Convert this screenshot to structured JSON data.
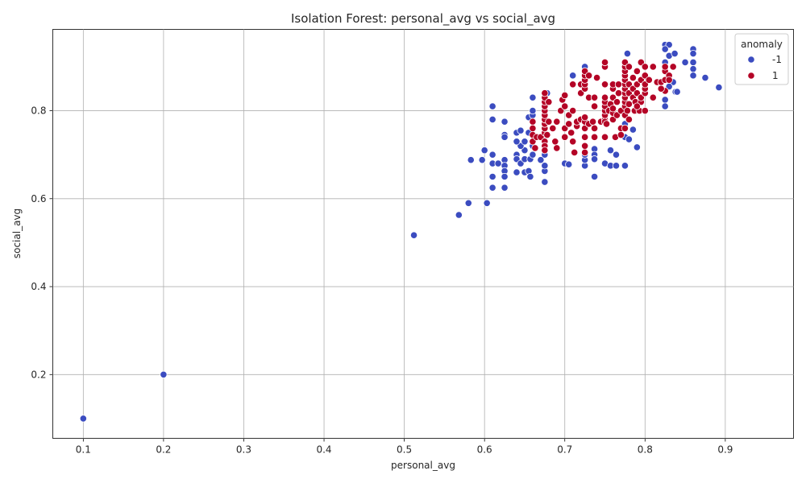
{
  "chart_data": {
    "type": "scatter",
    "title": "Isolation Forest: personal_avg vs social_avg",
    "xlabel": "personal_avg",
    "ylabel": "social_avg",
    "xlim": [
      0.062,
      0.985
    ],
    "ylim": [
      0.055,
      0.985
    ],
    "xticks": [
      "0.1",
      "0.2",
      "0.3",
      "0.4",
      "0.5",
      "0.6",
      "0.7",
      "0.8",
      "0.9"
    ],
    "xtick_values": [
      0.1,
      0.2,
      0.3,
      0.4,
      0.5,
      0.6,
      0.7,
      0.8,
      0.9
    ],
    "yticks": [
      "0.2",
      "0.4",
      "0.6",
      "0.8"
    ],
    "ytick_values": [
      0.2,
      0.4,
      0.6,
      0.8
    ],
    "grid": true,
    "legend": {
      "title": "anomaly",
      "placement": "top-right",
      "entries": [
        {
          "label": "-1",
          "color": "#3b4cc0"
        },
        {
          "label": "1",
          "color": "#b40426"
        }
      ]
    },
    "series": [
      {
        "name": "-1",
        "color": "#3b4cc0",
        "points": [
          [
            0.1,
            0.1
          ],
          [
            0.2,
            0.2
          ],
          [
            0.512,
            0.517
          ],
          [
            0.568,
            0.563
          ],
          [
            0.58,
            0.59
          ],
          [
            0.603,
            0.59
          ],
          [
            0.583,
            0.688
          ],
          [
            0.597,
            0.688
          ],
          [
            0.61,
            0.7
          ],
          [
            0.6,
            0.71
          ],
          [
            0.61,
            0.68
          ],
          [
            0.617,
            0.68
          ],
          [
            0.625,
            0.688
          ],
          [
            0.625,
            0.675
          ],
          [
            0.625,
            0.663
          ],
          [
            0.625,
            0.65
          ],
          [
            0.61,
            0.65
          ],
          [
            0.61,
            0.625
          ],
          [
            0.625,
            0.625
          ],
          [
            0.61,
            0.78
          ],
          [
            0.61,
            0.81
          ],
          [
            0.625,
            0.775
          ],
          [
            0.625,
            0.745
          ],
          [
            0.625,
            0.74
          ],
          [
            0.64,
            0.7
          ],
          [
            0.64,
            0.69
          ],
          [
            0.64,
            0.66
          ],
          [
            0.645,
            0.68
          ],
          [
            0.65,
            0.66
          ],
          [
            0.655,
            0.663
          ],
          [
            0.65,
            0.69
          ],
          [
            0.65,
            0.71
          ],
          [
            0.657,
            0.69
          ],
          [
            0.657,
            0.65
          ],
          [
            0.66,
            0.7
          ],
          [
            0.66,
            0.72
          ],
          [
            0.645,
            0.72
          ],
          [
            0.64,
            0.73
          ],
          [
            0.65,
            0.73
          ],
          [
            0.64,
            0.75
          ],
          [
            0.645,
            0.755
          ],
          [
            0.655,
            0.75
          ],
          [
            0.655,
            0.785
          ],
          [
            0.66,
            0.79
          ],
          [
            0.66,
            0.8
          ],
          [
            0.66,
            0.83
          ],
          [
            0.675,
            0.638
          ],
          [
            0.675,
            0.663
          ],
          [
            0.675,
            0.675
          ],
          [
            0.675,
            0.7
          ],
          [
            0.67,
            0.688
          ],
          [
            0.675,
            0.74
          ],
          [
            0.678,
            0.84
          ],
          [
            0.7,
            0.68
          ],
          [
            0.705,
            0.678
          ],
          [
            0.71,
            0.88
          ],
          [
            0.725,
            0.675
          ],
          [
            0.725,
            0.688
          ],
          [
            0.725,
            0.7
          ],
          [
            0.725,
            0.9
          ],
          [
            0.737,
            0.713
          ],
          [
            0.737,
            0.7
          ],
          [
            0.737,
            0.69
          ],
          [
            0.737,
            0.65
          ],
          [
            0.75,
            0.68
          ],
          [
            0.757,
            0.675
          ],
          [
            0.757,
            0.71
          ],
          [
            0.764,
            0.675
          ],
          [
            0.764,
            0.7
          ],
          [
            0.775,
            0.675
          ],
          [
            0.775,
            0.74
          ],
          [
            0.775,
            0.77
          ],
          [
            0.78,
            0.735
          ],
          [
            0.785,
            0.757
          ],
          [
            0.79,
            0.717
          ],
          [
            0.778,
            0.93
          ],
          [
            0.825,
            0.95
          ],
          [
            0.83,
            0.95
          ],
          [
            0.825,
            0.94
          ],
          [
            0.83,
            0.925
          ],
          [
            0.825,
            0.91
          ],
          [
            0.837,
            0.93
          ],
          [
            0.85,
            0.91
          ],
          [
            0.86,
            0.94
          ],
          [
            0.86,
            0.93
          ],
          [
            0.86,
            0.91
          ],
          [
            0.86,
            0.895
          ],
          [
            0.86,
            0.88
          ],
          [
            0.875,
            0.875
          ],
          [
            0.835,
            0.865
          ],
          [
            0.838,
            0.843
          ],
          [
            0.84,
            0.843
          ],
          [
            0.83,
            0.855
          ],
          [
            0.825,
            0.825
          ],
          [
            0.825,
            0.81
          ],
          [
            0.892,
            0.853
          ]
        ]
      },
      {
        "name": "1",
        "color": "#b40426",
        "points": [
          [
            0.66,
            0.775
          ],
          [
            0.66,
            0.76
          ],
          [
            0.66,
            0.745
          ],
          [
            0.66,
            0.73
          ],
          [
            0.663,
            0.715
          ],
          [
            0.665,
            0.74
          ],
          [
            0.67,
            0.74
          ],
          [
            0.675,
            0.75
          ],
          [
            0.675,
            0.76
          ],
          [
            0.675,
            0.77
          ],
          [
            0.675,
            0.78
          ],
          [
            0.675,
            0.79
          ],
          [
            0.675,
            0.8
          ],
          [
            0.675,
            0.81
          ],
          [
            0.675,
            0.82
          ],
          [
            0.675,
            0.83
          ],
          [
            0.675,
            0.84
          ],
          [
            0.675,
            0.73
          ],
          [
            0.675,
            0.72
          ],
          [
            0.675,
            0.71
          ],
          [
            0.678,
            0.745
          ],
          [
            0.68,
            0.775
          ],
          [
            0.68,
            0.82
          ],
          [
            0.685,
            0.76
          ],
          [
            0.688,
            0.73
          ],
          [
            0.69,
            0.775
          ],
          [
            0.69,
            0.715
          ],
          [
            0.695,
            0.8
          ],
          [
            0.697,
            0.825
          ],
          [
            0.7,
            0.76
          ],
          [
            0.7,
            0.74
          ],
          [
            0.7,
            0.81
          ],
          [
            0.7,
            0.835
          ],
          [
            0.705,
            0.77
          ],
          [
            0.705,
            0.79
          ],
          [
            0.708,
            0.75
          ],
          [
            0.71,
            0.73
          ],
          [
            0.71,
            0.8
          ],
          [
            0.71,
            0.86
          ],
          [
            0.712,
            0.705
          ],
          [
            0.715,
            0.765
          ],
          [
            0.715,
            0.775
          ],
          [
            0.72,
            0.78
          ],
          [
            0.72,
            0.84
          ],
          [
            0.72,
            0.86
          ],
          [
            0.725,
            0.72
          ],
          [
            0.725,
            0.705
          ],
          [
            0.725,
            0.74
          ],
          [
            0.725,
            0.76
          ],
          [
            0.725,
            0.775
          ],
          [
            0.725,
            0.785
          ],
          [
            0.725,
            0.85
          ],
          [
            0.725,
            0.86
          ],
          [
            0.725,
            0.87
          ],
          [
            0.725,
            0.88
          ],
          [
            0.725,
            0.89
          ],
          [
            0.73,
            0.77
          ],
          [
            0.73,
            0.83
          ],
          [
            0.73,
            0.88
          ],
          [
            0.735,
            0.775
          ],
          [
            0.737,
            0.76
          ],
          [
            0.737,
            0.74
          ],
          [
            0.737,
            0.81
          ],
          [
            0.737,
            0.83
          ],
          [
            0.74,
            0.875
          ],
          [
            0.745,
            0.775
          ],
          [
            0.75,
            0.78
          ],
          [
            0.75,
            0.79
          ],
          [
            0.75,
            0.8
          ],
          [
            0.75,
            0.81
          ],
          [
            0.75,
            0.82
          ],
          [
            0.75,
            0.83
          ],
          [
            0.75,
            0.86
          ],
          [
            0.75,
            0.9
          ],
          [
            0.75,
            0.91
          ],
          [
            0.75,
            0.74
          ],
          [
            0.75,
            0.775
          ],
          [
            0.752,
            0.77
          ],
          [
            0.755,
            0.8
          ],
          [
            0.757,
            0.815
          ],
          [
            0.76,
            0.78
          ],
          [
            0.76,
            0.795
          ],
          [
            0.76,
            0.805
          ],
          [
            0.76,
            0.83
          ],
          [
            0.76,
            0.85
          ],
          [
            0.76,
            0.86
          ],
          [
            0.763,
            0.74
          ],
          [
            0.765,
            0.79
          ],
          [
            0.765,
            0.82
          ],
          [
            0.767,
            0.84
          ],
          [
            0.767,
            0.86
          ],
          [
            0.77,
            0.76
          ],
          [
            0.77,
            0.745
          ],
          [
            0.77,
            0.8
          ],
          [
            0.775,
            0.79
          ],
          [
            0.775,
            0.81
          ],
          [
            0.775,
            0.82
          ],
          [
            0.775,
            0.83
          ],
          [
            0.775,
            0.84
          ],
          [
            0.775,
            0.85
          ],
          [
            0.775,
            0.86
          ],
          [
            0.775,
            0.87
          ],
          [
            0.775,
            0.88
          ],
          [
            0.775,
            0.89
          ],
          [
            0.775,
            0.9
          ],
          [
            0.775,
            0.91
          ],
          [
            0.775,
            0.76
          ],
          [
            0.778,
            0.8
          ],
          [
            0.78,
            0.78
          ],
          [
            0.78,
            0.815
          ],
          [
            0.78,
            0.84
          ],
          [
            0.78,
            0.86
          ],
          [
            0.78,
            0.9
          ],
          [
            0.785,
            0.83
          ],
          [
            0.785,
            0.85
          ],
          [
            0.785,
            0.875
          ],
          [
            0.787,
            0.8
          ],
          [
            0.788,
            0.82
          ],
          [
            0.79,
            0.86
          ],
          [
            0.79,
            0.84
          ],
          [
            0.79,
            0.89
          ],
          [
            0.793,
            0.8
          ],
          [
            0.795,
            0.82
          ],
          [
            0.795,
            0.83
          ],
          [
            0.795,
            0.87
          ],
          [
            0.795,
            0.91
          ],
          [
            0.8,
            0.8
          ],
          [
            0.8,
            0.84
          ],
          [
            0.8,
            0.85
          ],
          [
            0.8,
            0.88
          ],
          [
            0.8,
            0.9
          ],
          [
            0.8,
            0.86
          ],
          [
            0.805,
            0.87
          ],
          [
            0.81,
            0.83
          ],
          [
            0.81,
            0.9
          ],
          [
            0.815,
            0.865
          ],
          [
            0.82,
            0.865
          ],
          [
            0.825,
            0.87
          ],
          [
            0.825,
            0.89
          ],
          [
            0.825,
            0.9
          ],
          [
            0.83,
            0.88
          ],
          [
            0.83,
            0.87
          ],
          [
            0.835,
            0.9
          ],
          [
            0.825,
            0.845
          ],
          [
            0.82,
            0.85
          ],
          [
            0.79,
            0.81
          ]
        ]
      }
    ]
  }
}
